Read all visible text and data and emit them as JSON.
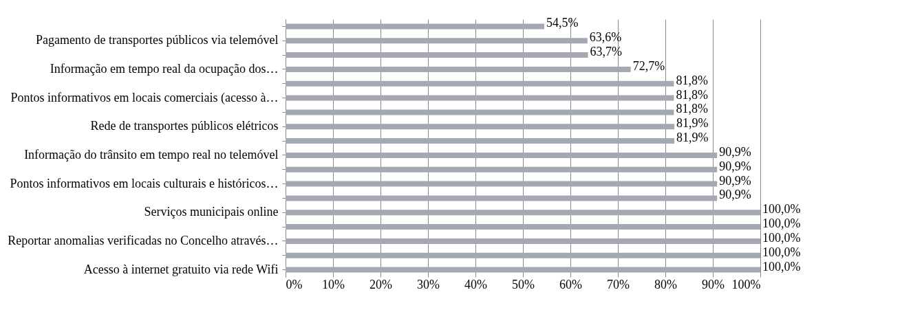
{
  "chart_data": {
    "type": "bar",
    "orientation": "horizontal",
    "categories": [
      null,
      "Pagamento de transportes públicos via telemóvel",
      null,
      "Informação em tempo real da ocupação dos…",
      null,
      "Pontos informativos em locais comerciais (acesso à…",
      null,
      "Rede de transportes públicos elétricos",
      null,
      "Informação do trânsito em tempo real no telemóvel",
      null,
      "Pontos informativos em locais culturais e históricos…",
      null,
      "Serviços municipais online",
      null,
      "Reportar anomalias verificadas no Concelho através…",
      null,
      "Acesso à internet gratuito via rede Wifi"
    ],
    "values": [
      54.5,
      63.6,
      63.7,
      72.7,
      81.8,
      81.8,
      81.8,
      81.9,
      81.9,
      90.9,
      90.9,
      90.9,
      90.9,
      100,
      100,
      100,
      100,
      100
    ],
    "value_labels": [
      "54,5%",
      "63,6%",
      "63,7%",
      "72,7%",
      "81,8%",
      "81,8%",
      "81,8%",
      "81,9%",
      "81,9%",
      "90,9%",
      "90,9%",
      "90,9%",
      "90,9%",
      "100,0%",
      "100,0%",
      "100,0%",
      "100,0%",
      "100,0%"
    ],
    "color": "#a3a8b4",
    "xlim": [
      0,
      100
    ],
    "xticks": [
      {
        "value": 0,
        "label": "0%"
      },
      {
        "value": 10,
        "label": "10%"
      },
      {
        "value": 20,
        "label": "20%"
      },
      {
        "value": 30,
        "label": "30%"
      },
      {
        "value": 40,
        "label": "40%"
      },
      {
        "value": 50,
        "label": "50%"
      },
      {
        "value": 60,
        "label": "60%"
      },
      {
        "value": 70,
        "label": "70%"
      },
      {
        "value": 80,
        "label": "80%"
      },
      {
        "value": 90,
        "label": "90%"
      },
      {
        "value": 100,
        "label": "100%"
      }
    ],
    "grid": "x"
  }
}
